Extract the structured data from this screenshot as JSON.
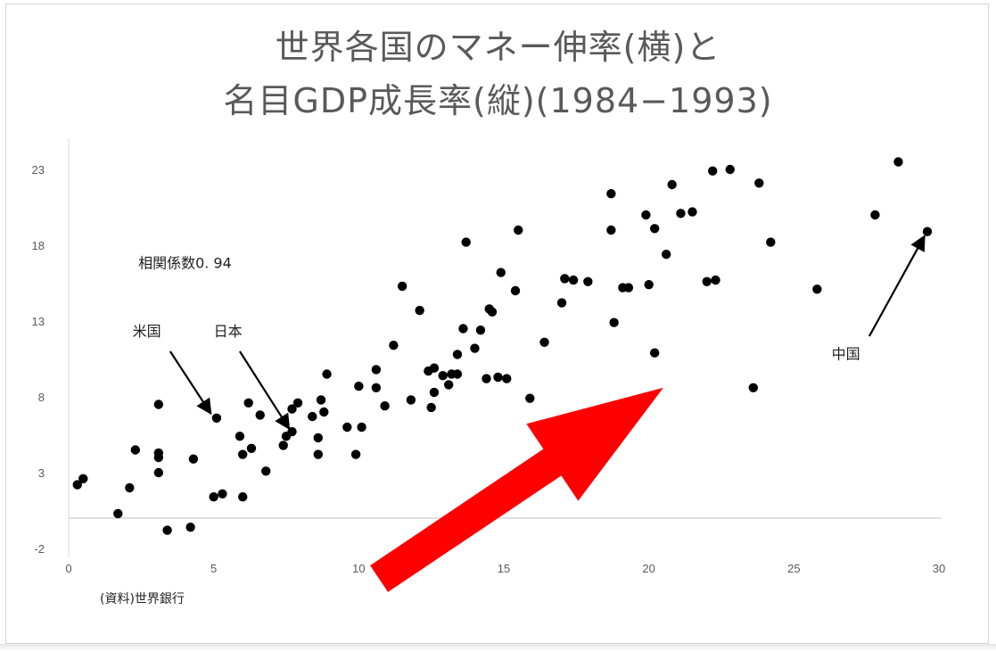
{
  "slide": {
    "title_line1": "世界各国のマネー伸率(横)と",
    "title_line2": "名目GDP成長率(縦)(1984−1993)",
    "source_note": "(資料)世界銀行"
  },
  "chart_data": {
    "type": "scatter",
    "title": "世界各国のマネー伸率(横)と 名目GDP成長率(縦)(1984−1993)",
    "xlabel": "",
    "ylabel": "",
    "xlim": [
      0,
      30
    ],
    "ylim": [
      -2,
      25
    ],
    "x_ticks": [
      0,
      5,
      10,
      15,
      20,
      25,
      30
    ],
    "y_ticks": [
      -2,
      3,
      8,
      13,
      18,
      23
    ],
    "grid": false,
    "legend": "none",
    "point_color": "#000000",
    "series": [
      {
        "points": [
          [
            0.3,
            2.2
          ],
          [
            0.5,
            2.6
          ],
          [
            1.7,
            0.3
          ],
          [
            2.1,
            2.0
          ],
          [
            2.3,
            4.5
          ],
          [
            3.1,
            7.5
          ],
          [
            3.1,
            4.3
          ],
          [
            3.1,
            4.0
          ],
          [
            3.1,
            3.0
          ],
          [
            3.4,
            -0.8
          ],
          [
            4.2,
            -0.6
          ],
          [
            4.3,
            3.9
          ],
          [
            5.0,
            1.4
          ],
          [
            5.1,
            6.6
          ],
          [
            5.3,
            1.6
          ],
          [
            5.9,
            5.4
          ],
          [
            6.0,
            1.4
          ],
          [
            6.0,
            4.2
          ],
          [
            6.2,
            7.6
          ],
          [
            6.3,
            4.6
          ],
          [
            6.6,
            6.8
          ],
          [
            6.8,
            3.1
          ],
          [
            7.4,
            4.8
          ],
          [
            7.5,
            5.4
          ],
          [
            7.7,
            5.7
          ],
          [
            7.7,
            7.2
          ],
          [
            7.9,
            7.6
          ],
          [
            8.4,
            6.7
          ],
          [
            8.6,
            5.3
          ],
          [
            8.6,
            4.2
          ],
          [
            8.7,
            7.8
          ],
          [
            8.8,
            7.0
          ],
          [
            8.9,
            9.5
          ],
          [
            9.6,
            6.0
          ],
          [
            9.9,
            4.2
          ],
          [
            10.0,
            8.7
          ],
          [
            10.1,
            6.0
          ],
          [
            10.6,
            8.6
          ],
          [
            10.6,
            9.8
          ],
          [
            10.9,
            7.4
          ],
          [
            11.2,
            11.4
          ],
          [
            11.5,
            15.3
          ],
          [
            11.8,
            7.8
          ],
          [
            12.1,
            13.7
          ],
          [
            12.4,
            9.7
          ],
          [
            12.5,
            7.3
          ],
          [
            12.6,
            8.3
          ],
          [
            12.6,
            9.9
          ],
          [
            12.9,
            9.4
          ],
          [
            13.1,
            8.8
          ],
          [
            13.2,
            9.5
          ],
          [
            13.4,
            10.8
          ],
          [
            13.4,
            9.5
          ],
          [
            13.6,
            12.5
          ],
          [
            13.7,
            18.2
          ],
          [
            14.0,
            11.2
          ],
          [
            14.2,
            12.4
          ],
          [
            14.4,
            9.2
          ],
          [
            14.5,
            13.8
          ],
          [
            14.6,
            13.6
          ],
          [
            14.8,
            9.3
          ],
          [
            14.9,
            16.2
          ],
          [
            15.1,
            9.2
          ],
          [
            15.4,
            15.0
          ],
          [
            15.5,
            19.0
          ],
          [
            15.9,
            7.9
          ],
          [
            16.4,
            11.6
          ],
          [
            17.0,
            14.2
          ],
          [
            17.1,
            15.8
          ],
          [
            17.4,
            15.7
          ],
          [
            17.9,
            15.6
          ],
          [
            18.7,
            21.4
          ],
          [
            18.7,
            19.0
          ],
          [
            18.8,
            12.9
          ],
          [
            19.1,
            15.2
          ],
          [
            19.3,
            15.2
          ],
          [
            19.9,
            20.0
          ],
          [
            20.0,
            15.4
          ],
          [
            20.2,
            19.1
          ],
          [
            20.2,
            10.9
          ],
          [
            20.6,
            17.4
          ],
          [
            20.8,
            22.0
          ],
          [
            21.1,
            20.1
          ],
          [
            21.5,
            20.2
          ],
          [
            22.0,
            15.6
          ],
          [
            22.2,
            22.9
          ],
          [
            22.3,
            15.7
          ],
          [
            22.8,
            23.0
          ],
          [
            23.6,
            8.6
          ],
          [
            23.8,
            22.1
          ],
          [
            24.2,
            18.2
          ],
          [
            25.8,
            15.1
          ],
          [
            27.8,
            20.0
          ],
          [
            28.6,
            23.5
          ],
          [
            29.6,
            18.9
          ]
        ]
      }
    ],
    "zero_line_y": 0,
    "annotations": [
      {
        "id": "corr",
        "text": "相関係数0. 94",
        "x": 2.4,
        "y": 16.5,
        "arrow": false
      },
      {
        "id": "us",
        "text": "米国",
        "x": 2.2,
        "y": 12.0,
        "arrow_from": [
          3.5,
          11.0
        ],
        "arrow_to": [
          4.9,
          6.9
        ]
      },
      {
        "id": "japan",
        "text": "日本",
        "x": 5.0,
        "y": 12.0,
        "arrow_from": [
          5.9,
          11.0
        ],
        "arrow_to": [
          7.6,
          5.9
        ]
      },
      {
        "id": "china",
        "text": "中国",
        "x": 26.3,
        "y": 10.5,
        "arrow_from": [
          27.6,
          12.0
        ],
        "arrow_to": [
          29.5,
          18.6
        ]
      }
    ],
    "trend_arrow": {
      "color": "#ff0000",
      "from": [
        10.7,
        -4.0
      ],
      "to": [
        20.5,
        8.6
      ]
    }
  }
}
